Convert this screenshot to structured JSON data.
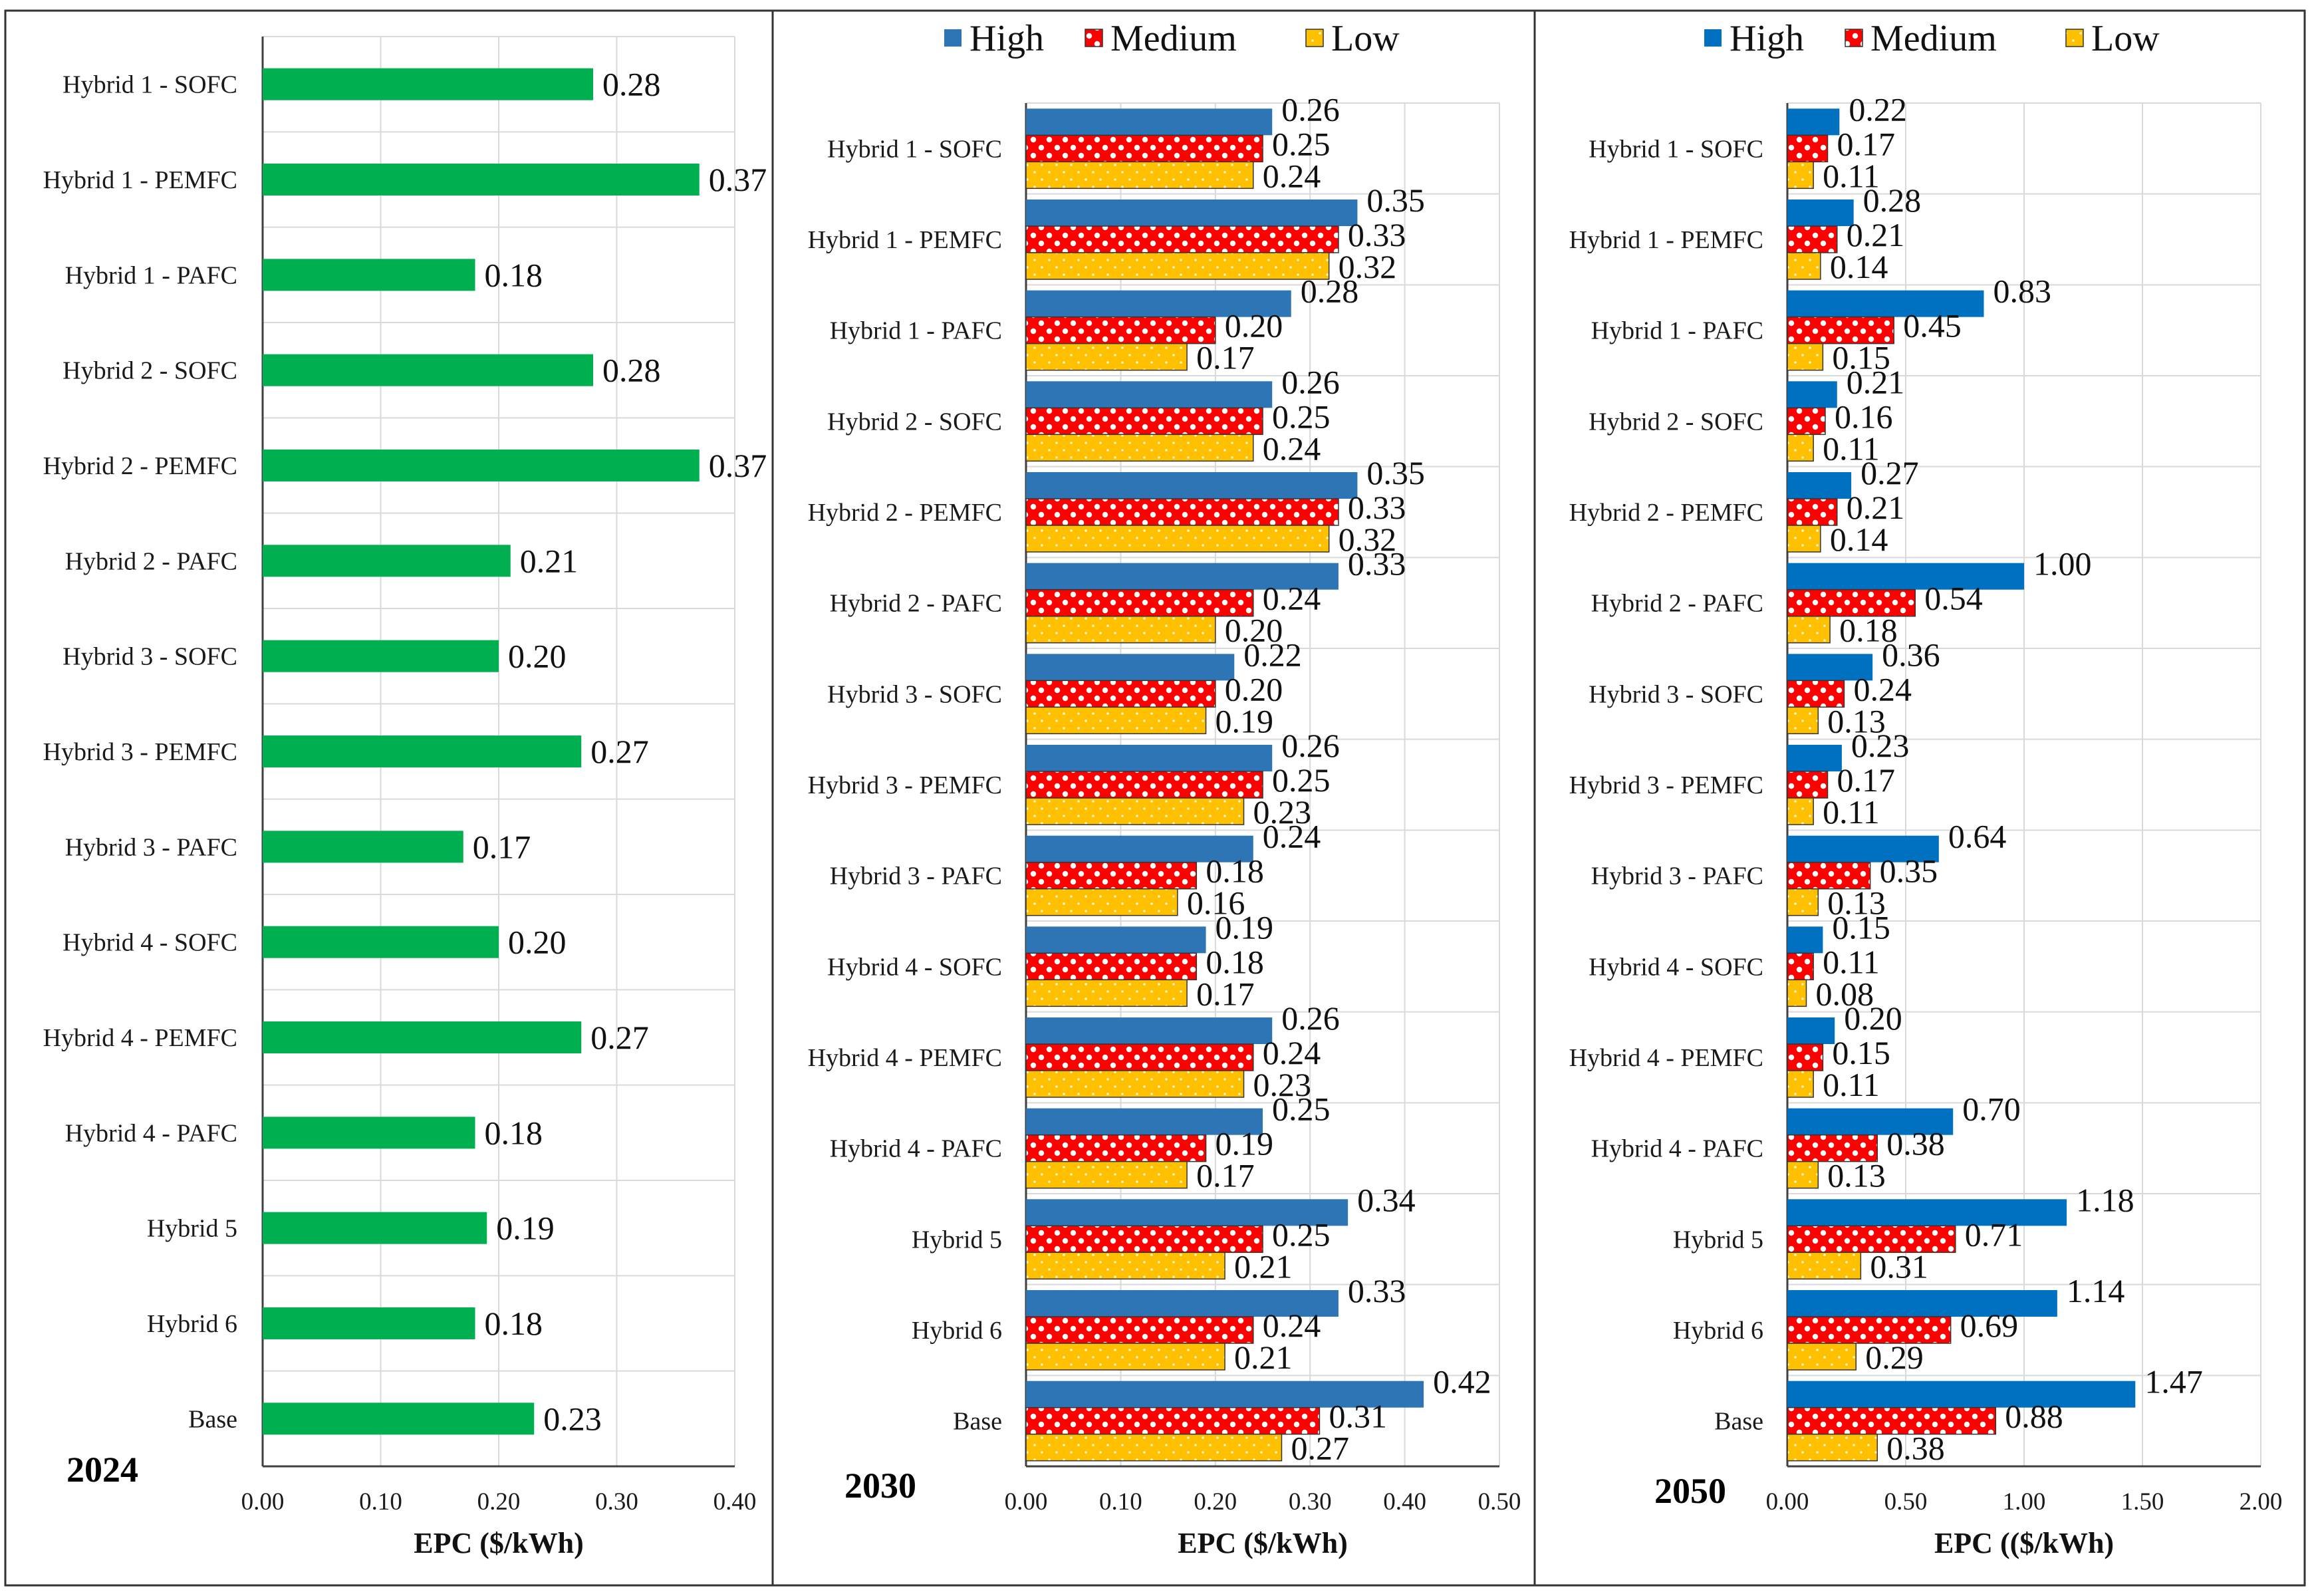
{
  "chart_data": [
    {
      "type": "bar",
      "orientation": "horizontal",
      "panel": "2024",
      "year_label": "2024",
      "title": "",
      "xlabel": "EPC ($/kWh)",
      "ylabel": "",
      "xlim": [
        0,
        0.4
      ],
      "ticks": [
        "0.00",
        "0.10",
        "0.20",
        "0.30",
        "0.40"
      ],
      "grid": true,
      "legend": "none",
      "categories": [
        "Hybrid 1 - SOFC",
        "Hybrid 1 - PEMFC",
        "Hybrid 1 - PAFC",
        "Hybrid 2 - SOFC",
        "Hybrid 2 - PEMFC",
        "Hybrid 2 - PAFC",
        "Hybrid 3 - SOFC",
        "Hybrid 3 - PEMFC",
        "Hybrid 3 - PAFC",
        "Hybrid 4 - SOFC",
        "Hybrid 4 - PEMFC",
        "Hybrid 4 - PAFC",
        "Hybrid 5",
        "Hybrid 6",
        "Base"
      ],
      "series": [
        {
          "name": "EPC",
          "color": "#00b050",
          "pattern": "solid",
          "values": [
            0.28,
            0.37,
            0.18,
            0.28,
            0.37,
            0.21,
            0.2,
            0.27,
            0.17,
            0.2,
            0.27,
            0.18,
            0.19,
            0.18,
            0.23
          ],
          "labels": [
            "0.28",
            "0.37",
            "0.18",
            "0.28",
            "0.37",
            "0.21",
            "0.20",
            "0.27",
            "0.17",
            "0.20",
            "0.27",
            "0.18",
            "0.19",
            "0.18",
            "0.23"
          ]
        }
      ]
    },
    {
      "type": "bar",
      "orientation": "horizontal",
      "panel": "2030",
      "year_label": "2030",
      "title": "",
      "xlabel": "EPC ($/kWh)",
      "ylabel": "",
      "xlim": [
        0,
        0.5
      ],
      "ticks": [
        "0.00",
        "0.10",
        "0.20",
        "0.30",
        "0.40",
        "0.50"
      ],
      "grid": true,
      "legend": "top-center",
      "categories": [
        "Hybrid 1 - SOFC",
        "Hybrid 1 - PEMFC",
        "Hybrid 1 - PAFC",
        "Hybrid 2 - SOFC",
        "Hybrid 2 - PEMFC",
        "Hybrid 2 - PAFC",
        "Hybrid 3 - SOFC",
        "Hybrid 3 - PEMFC",
        "Hybrid 3 - PAFC",
        "Hybrid 4 - SOFC",
        "Hybrid 4 - PEMFC",
        "Hybrid 4 - PAFC",
        "Hybrid 5",
        "Hybrid 6",
        "Base"
      ],
      "series": [
        {
          "name": "High",
          "color": "#2e75b6",
          "pattern": "solid",
          "values": [
            0.26,
            0.35,
            0.28,
            0.26,
            0.35,
            0.33,
            0.22,
            0.26,
            0.24,
            0.19,
            0.26,
            0.25,
            0.34,
            0.33,
            0.42
          ],
          "labels": [
            "0.26",
            "0.35",
            "0.28",
            "0.26",
            "0.35",
            "0.33",
            "0.22",
            "0.26",
            "0.24",
            "0.19",
            "0.26",
            "0.25",
            "0.34",
            "0.33",
            "0.42"
          ]
        },
        {
          "name": "Medium",
          "color": "#ff0000",
          "pattern": "checker",
          "values": [
            0.25,
            0.33,
            0.2,
            0.25,
            0.33,
            0.24,
            0.2,
            0.25,
            0.18,
            0.18,
            0.24,
            0.19,
            0.25,
            0.24,
            0.31
          ],
          "labels": [
            "0.25",
            "0.33",
            "0.20",
            "0.25",
            "0.33",
            "0.24",
            "0.20",
            "0.25",
            "0.18",
            "0.18",
            "0.24",
            "0.19",
            "0.25",
            "0.24",
            "0.31"
          ]
        },
        {
          "name": "Low",
          "color": "#ffc000",
          "pattern": "dots",
          "values": [
            0.24,
            0.32,
            0.17,
            0.24,
            0.32,
            0.2,
            0.19,
            0.23,
            0.16,
            0.17,
            0.23,
            0.17,
            0.21,
            0.21,
            0.27
          ],
          "labels": [
            "0.24",
            "0.32",
            "0.17",
            "0.24",
            "0.32",
            "0.20",
            "0.19",
            "0.23",
            "0.16",
            "0.17",
            "0.23",
            "0.17",
            "0.21",
            "0.21",
            "0.27"
          ]
        }
      ]
    },
    {
      "type": "bar",
      "orientation": "horizontal",
      "panel": "2050",
      "year_label": "2050",
      "title": "",
      "xlabel": "EPC (($/kWh)",
      "ylabel": "",
      "xlim": [
        0,
        2.0
      ],
      "ticks": [
        "0.00",
        "0.50",
        "1.00",
        "1.50",
        "2.00"
      ],
      "grid": true,
      "legend": "top-center",
      "categories": [
        "Hybrid 1 - SOFC",
        "Hybrid 1 - PEMFC",
        "Hybrid 1 - PAFC",
        "Hybrid 2 - SOFC",
        "Hybrid 2 - PEMFC",
        "Hybrid 2 - PAFC",
        "Hybrid 3 - SOFC",
        "Hybrid 3 - PEMFC",
        "Hybrid 3 - PAFC",
        "Hybrid 4 - SOFC",
        "Hybrid 4 - PEMFC",
        "Hybrid 4 - PAFC",
        "Hybrid 5",
        "Hybrid 6",
        "Base"
      ],
      "series": [
        {
          "name": "High",
          "color": "#0070c0",
          "pattern": "solid",
          "values": [
            0.22,
            0.28,
            0.83,
            0.21,
            0.27,
            1.0,
            0.36,
            0.23,
            0.64,
            0.15,
            0.2,
            0.7,
            1.18,
            1.14,
            1.47
          ],
          "labels": [
            "0.22",
            "0.28",
            "0.83",
            "0.21",
            "0.27",
            "1.00",
            "0.36",
            "0.23",
            "0.64",
            "0.15",
            "0.20",
            "0.70",
            "1.18",
            "1.14",
            "1.47"
          ]
        },
        {
          "name": "Medium",
          "color": "#ff0000",
          "pattern": "checker",
          "values": [
            0.17,
            0.21,
            0.45,
            0.16,
            0.21,
            0.54,
            0.24,
            0.17,
            0.35,
            0.11,
            0.15,
            0.38,
            0.71,
            0.69,
            0.88
          ],
          "labels": [
            "0.17",
            "0.21",
            "0.45",
            "0.16",
            "0.21",
            "0.54",
            "0.24",
            "0.17",
            "0.35",
            "0.11",
            "0.15",
            "0.38",
            "0.71",
            "0.69",
            "0.88"
          ]
        },
        {
          "name": "Low",
          "color": "#ffc000",
          "pattern": "dots",
          "values": [
            0.11,
            0.14,
            0.15,
            0.11,
            0.14,
            0.18,
            0.13,
            0.11,
            0.13,
            0.08,
            0.11,
            0.13,
            0.31,
            0.29,
            0.38
          ],
          "labels": [
            "0.11",
            "0.14",
            "0.15",
            "0.11",
            "0.14",
            "0.18",
            "0.13",
            "0.11",
            "0.13",
            "0.08",
            "0.11",
            "0.13",
            "0.31",
            "0.29",
            "0.38"
          ]
        }
      ]
    }
  ]
}
